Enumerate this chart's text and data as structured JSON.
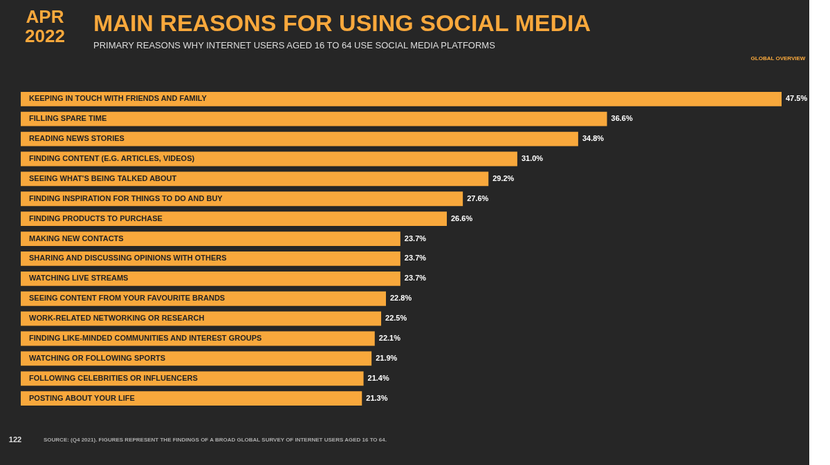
{
  "chart_data": {
    "type": "bar",
    "orientation": "horizontal",
    "title": "MAIN REASONS FOR USING SOCIAL MEDIA",
    "subtitle": "PRIMARY REASONS WHY INTERNET USERS AGED 16 TO 64 USE SOCIAL MEDIA PLATFORMS",
    "categories": [
      "KEEPING IN TOUCH WITH FRIENDS AND FAMILY",
      "FILLING SPARE TIME",
      "READING NEWS STORIES",
      "FINDING CONTENT (E.G. ARTICLES, VIDEOS)",
      "SEEING WHAT'S BEING TALKED ABOUT",
      "FINDING INSPIRATION FOR THINGS TO DO AND BUY",
      "FINDING PRODUCTS TO PURCHASE",
      "MAKING NEW CONTACTS",
      "SHARING AND DISCUSSING OPINIONS WITH OTHERS",
      "WATCHING LIVE STREAMS",
      "SEEING CONTENT FROM YOUR FAVOURITE BRANDS",
      "WORK-RELATED NETWORKING OR RESEARCH",
      "FINDING LIKE-MINDED COMMUNITIES AND INTEREST GROUPS",
      "WATCHING OR FOLLOWING SPORTS",
      "FOLLOWING CELEBRITIES OR INFLUENCERS",
      "POSTING ABOUT YOUR LIFE"
    ],
    "values": [
      47.5,
      36.6,
      34.8,
      31.0,
      29.2,
      27.6,
      26.6,
      23.7,
      23.7,
      23.7,
      22.8,
      22.5,
      22.1,
      21.9,
      21.4,
      21.3
    ],
    "value_labels": [
      "47.5%",
      "36.6%",
      "34.8%",
      "31.0%",
      "29.2%",
      "27.6%",
      "26.6%",
      "23.7%",
      "23.7%",
      "23.7%",
      "22.8%",
      "22.5%",
      "22.1%",
      "21.9%",
      "21.4%",
      "21.3%"
    ],
    "color": "#f8a83c",
    "annotations": [
      "APR\n2022",
      "GLOBAL OVERVIEW",
      "122",
      "SOURCE: (Q4 2021). FIGURES REPRESENT THE FINDINGS OF A BROAD GLOBAL SURVEY OF INTERNET USERS AGED 16 TO 64."
    ]
  }
}
